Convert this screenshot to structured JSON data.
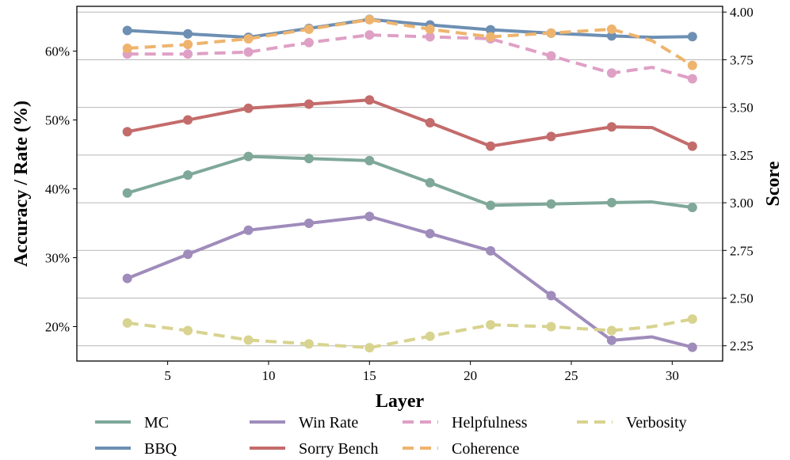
{
  "chart_data": {
    "type": "line",
    "xlabel": "Layer",
    "ylabel_left": "Accuracy / Rate (%)",
    "ylabel_right": "Score",
    "xlim": [
      0.5,
      32.5
    ],
    "ylim_left": [
      15,
      66.5
    ],
    "ylim_right": [
      2.17,
      4.03
    ],
    "xticks": [
      5,
      10,
      15,
      20,
      25,
      30
    ],
    "xtick_labels": [
      "5",
      "10",
      "15",
      "20",
      "25",
      "30"
    ],
    "yticks_left": [
      20,
      30,
      40,
      50,
      60
    ],
    "ytick_labels_left": [
      "20%",
      "30%",
      "40%",
      "50%",
      "60%"
    ],
    "yticks_right": [
      2.25,
      2.5,
      2.75,
      3.0,
      3.25,
      3.5,
      3.75,
      4.0
    ],
    "ytick_labels_right": [
      "2.25",
      "2.50",
      "2.75",
      "3.00",
      "3.25",
      "3.50",
      "3.75",
      "4.00"
    ],
    "grid": "horizontal lines at right-axis ticks",
    "legend_placement": "below plot",
    "series": [
      {
        "name": "MC",
        "axis": "left",
        "style": "solid",
        "color": "#7fa899",
        "x": [
          3,
          6,
          9,
          12,
          15,
          18,
          21,
          24,
          27,
          29,
          31
        ],
        "y": [
          39.4,
          42.0,
          44.7,
          44.4,
          44.1,
          40.9,
          37.6,
          37.8,
          38.0,
          38.1,
          37.3
        ]
      },
      {
        "name": "BBQ",
        "axis": "left",
        "style": "solid",
        "color": "#6d8fb3",
        "x": [
          3,
          6,
          9,
          12,
          15,
          18,
          21,
          24,
          27,
          29,
          31
        ],
        "y": [
          63.0,
          62.5,
          62.0,
          63.3,
          64.6,
          63.8,
          63.1,
          62.6,
          62.2,
          62.0,
          62.1
        ]
      },
      {
        "name": "Win Rate",
        "axis": "left",
        "style": "solid",
        "color": "#9f8cbb",
        "x": [
          3,
          6,
          9,
          12,
          15,
          18,
          21,
          24,
          27,
          29,
          31
        ],
        "y": [
          27.0,
          30.5,
          34.0,
          35.0,
          36.0,
          33.5,
          31.0,
          24.5,
          18.0,
          18.5,
          17.0
        ]
      },
      {
        "name": "Sorry Bench",
        "axis": "left",
        "style": "solid",
        "color": "#c46b6b",
        "x": [
          3,
          6,
          9,
          12,
          15,
          18,
          21,
          24,
          27,
          29,
          31
        ],
        "y": [
          48.3,
          50.0,
          51.7,
          52.3,
          52.9,
          49.6,
          46.2,
          47.6,
          49.0,
          48.9,
          46.2
        ]
      },
      {
        "name": "Helpfulness",
        "axis": "right",
        "style": "dashed",
        "color": "#dfa0c5",
        "x": [
          3,
          6,
          9,
          12,
          15,
          18,
          21,
          24,
          27,
          29,
          31
        ],
        "y": [
          3.78,
          3.78,
          3.79,
          3.84,
          3.88,
          3.87,
          3.86,
          3.77,
          3.68,
          3.71,
          3.65
        ]
      },
      {
        "name": "Coherence",
        "axis": "right",
        "style": "dashed",
        "color": "#eeb46e",
        "x": [
          3,
          6,
          9,
          12,
          15,
          18,
          21,
          24,
          27,
          29,
          31
        ],
        "y": [
          3.81,
          3.83,
          3.86,
          3.91,
          3.96,
          3.91,
          3.87,
          3.89,
          3.91,
          3.85,
          3.72
        ]
      },
      {
        "name": "Verbosity",
        "axis": "right",
        "style": "dashed",
        "color": "#d8d38f",
        "x": [
          3,
          6,
          9,
          12,
          15,
          18,
          21,
          24,
          27,
          29,
          31
        ],
        "y": [
          2.37,
          2.33,
          2.28,
          2.26,
          2.24,
          2.3,
          2.36,
          2.35,
          2.33,
          2.35,
          2.39
        ]
      }
    ],
    "legend": [
      {
        "name": "MC",
        "style": "solid",
        "color": "#7fa899"
      },
      {
        "name": "BBQ",
        "style": "solid",
        "color": "#6d8fb3"
      },
      {
        "name": "Win Rate",
        "style": "solid",
        "color": "#9f8cbb"
      },
      {
        "name": "Sorry Bench",
        "style": "solid",
        "color": "#c46b6b"
      },
      {
        "name": "Helpfulness",
        "style": "dashed",
        "color": "#dfa0c5"
      },
      {
        "name": "Coherence",
        "style": "dashed",
        "color": "#eeb46e"
      },
      {
        "name": "Verbosity",
        "style": "dashed",
        "color": "#d8d38f"
      }
    ]
  }
}
